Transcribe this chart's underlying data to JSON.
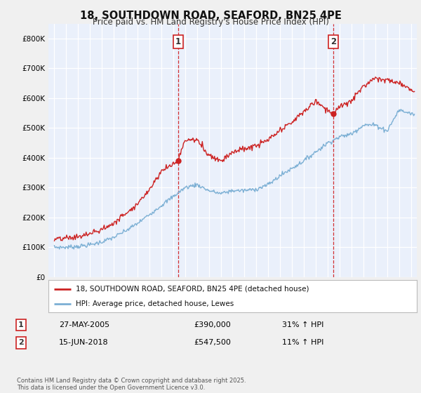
{
  "title": "18, SOUTHDOWN ROAD, SEAFORD, BN25 4PE",
  "subtitle": "Price paid vs. HM Land Registry's House Price Index (HPI)",
  "background_color": "#f0f0f0",
  "plot_bg_color": "#eaf0fb",
  "grid_color": "#ffffff",
  "red_color": "#cc2222",
  "blue_color": "#7bafd4",
  "marker1_year": 2005.4,
  "marker2_year": 2018.46,
  "marker1_value": 390000,
  "marker2_value": 547500,
  "ylim": [
    0,
    850000
  ],
  "xlim": [
    1994.5,
    2025.5
  ],
  "footnote": "Contains HM Land Registry data © Crown copyright and database right 2025.\nThis data is licensed under the Open Government Licence v3.0.",
  "legend_label1": "18, SOUTHDOWN ROAD, SEAFORD, BN25 4PE (detached house)",
  "legend_label2": "HPI: Average price, detached house, Lewes",
  "table_row1": [
    "1",
    "27-MAY-2005",
    "£390,000",
    "31% ↑ HPI"
  ],
  "table_row2": [
    "2",
    "15-JUN-2018",
    "£547,500",
    "11% ↑ HPI"
  ],
  "hpi_key_x": [
    1995,
    1996,
    1997,
    1998,
    1999,
    2000,
    2001,
    2002,
    2003,
    2004,
    2005,
    2006,
    2007,
    2008,
    2009,
    2010,
    2011,
    2012,
    2013,
    2014,
    2015,
    2016,
    2017,
    2018,
    2019,
    2020,
    2021,
    2022,
    2023,
    2024,
    2025.3
  ],
  "hpi_key_y": [
    100000,
    100000,
    103000,
    108000,
    118000,
    133000,
    155000,
    180000,
    210000,
    240000,
    270000,
    300000,
    310000,
    290000,
    280000,
    290000,
    290000,
    295000,
    310000,
    340000,
    365000,
    390000,
    420000,
    450000,
    470000,
    480000,
    510000,
    510000,
    490000,
    560000,
    545000
  ],
  "red_key_x": [
    1995,
    1996,
    1997,
    1998,
    1999,
    2000,
    2001,
    2002,
    2003,
    2004,
    2005.4,
    2006,
    2007,
    2008,
    2009,
    2010,
    2011,
    2012,
    2013,
    2014,
    2015,
    2016,
    2017,
    2018.46,
    2019,
    2020,
    2021,
    2022,
    2023,
    2024,
    2025.3
  ],
  "red_key_y": [
    125000,
    130000,
    135000,
    145000,
    160000,
    180000,
    215000,
    245000,
    295000,
    355000,
    390000,
    460000,
    460000,
    410000,
    390000,
    420000,
    430000,
    440000,
    460000,
    490000,
    520000,
    555000,
    590000,
    547500,
    570000,
    590000,
    640000,
    670000,
    660000,
    650000,
    625000
  ]
}
